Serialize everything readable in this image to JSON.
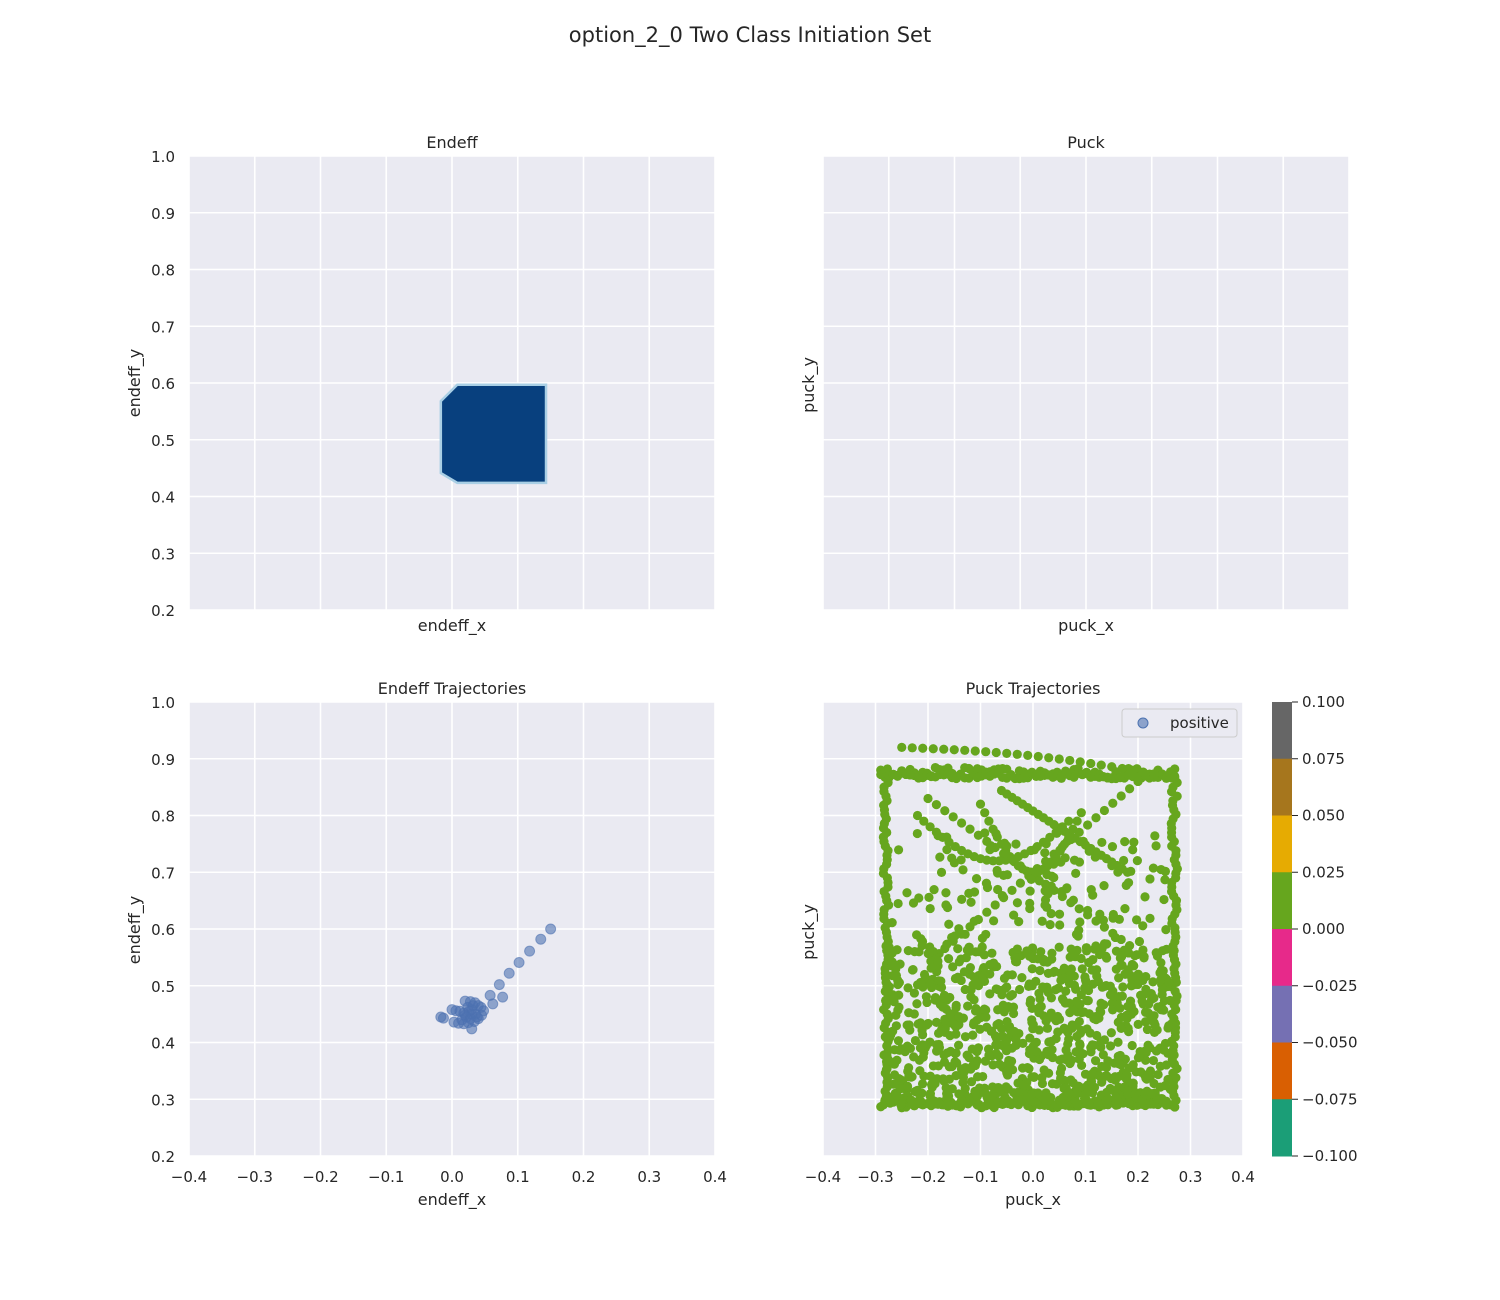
{
  "suptitle": "option_2_0 Two Class Initiation Set",
  "colors": {
    "axes_bg": "#eaeaf2",
    "grid": "#ffffff",
    "region": "#08407e",
    "region_edge": "#a9cfe5",
    "endeff_points": "#4c72b0",
    "puck_points": "#66a61e"
  },
  "chart_data": [
    {
      "type": "heatmap",
      "title": "Endeff",
      "xlabel": "endeff_x",
      "ylabel": "endeff_y",
      "xlim": [
        -0.4,
        0.4
      ],
      "ylim": [
        0.2,
        1.0
      ],
      "xticks_visible": false,
      "yticks": [
        "1.0",
        "0.9",
        "0.8",
        "0.7",
        "0.6",
        "0.5",
        "0.4",
        "0.3",
        "0.2"
      ],
      "grid": true,
      "region": {
        "x_range": [
          -0.017,
          0.143
        ],
        "y_range": [
          0.424,
          0.597
        ],
        "corner_cut": 0.025,
        "edge_color": "#a9cfe5"
      }
    },
    {
      "type": "heatmap",
      "title": "Puck",
      "xlabel": "puck_x",
      "ylabel": "puck_y",
      "xlim": [
        -0.4,
        0.4
      ],
      "ylim": [
        0.2,
        1.0
      ],
      "xticks_visible": false,
      "yticks_visible": false,
      "grid": true,
      "region": null
    },
    {
      "type": "scatter",
      "title": "Endeff Trajectories",
      "xlabel": "endeff_x",
      "ylabel": "endeff_y",
      "xlim": [
        -0.4,
        0.4
      ],
      "ylim": [
        0.2,
        1.0
      ],
      "xticks": [
        "−0.4",
        "−0.3",
        "−0.2",
        "−0.1",
        "0.0",
        "0.1",
        "0.2",
        "0.3",
        "0.4"
      ],
      "yticks": [
        "1.0",
        "0.9",
        "0.8",
        "0.7",
        "0.6",
        "0.5",
        "0.4",
        "0.3",
        "0.2"
      ],
      "grid": true,
      "points": [
        [
          0.15,
          0.6
        ],
        [
          0.135,
          0.582
        ],
        [
          0.118,
          0.561
        ],
        [
          0.102,
          0.541
        ],
        [
          0.087,
          0.522
        ],
        [
          0.072,
          0.502
        ],
        [
          0.058,
          0.483
        ],
        [
          0.077,
          0.48
        ],
        [
          0.062,
          0.468
        ],
        [
          0.048,
          0.456
        ],
        [
          0.04,
          0.465
        ],
        [
          0.035,
          0.47
        ],
        [
          0.028,
          0.472
        ],
        [
          0.02,
          0.473
        ],
        [
          0.024,
          0.462
        ],
        [
          0.03,
          0.458
        ],
        [
          0.036,
          0.45
        ],
        [
          0.018,
          0.452
        ],
        [
          0.012,
          0.455
        ],
        [
          0.006,
          0.456
        ],
        [
          0.0,
          0.458
        ],
        [
          0.022,
          0.445
        ],
        [
          0.028,
          0.442
        ],
        [
          0.04,
          0.442
        ],
        [
          0.034,
          0.437
        ],
        [
          0.025,
          0.435
        ],
        [
          0.018,
          0.433
        ],
        [
          0.01,
          0.434
        ],
        [
          0.003,
          0.436
        ],
        [
          0.03,
          0.424
        ],
        [
          -0.013,
          0.443
        ],
        [
          -0.017,
          0.445
        ],
        [
          0.044,
          0.462
        ],
        [
          0.03,
          0.45
        ],
        [
          0.026,
          0.455
        ],
        [
          0.02,
          0.448
        ],
        [
          0.038,
          0.445
        ],
        [
          0.015,
          0.44
        ],
        [
          0.032,
          0.465
        ],
        [
          0.045,
          0.448
        ]
      ]
    },
    {
      "type": "scatter",
      "title": "Puck Trajectories",
      "xlabel": "puck_x",
      "ylabel": "puck_y",
      "xlim": [
        -0.4,
        0.4
      ],
      "ylim": [
        0.2,
        1.0
      ],
      "xticks": [
        "−0.4",
        "−0.3",
        "−0.2",
        "−0.1",
        "0.0",
        "0.1",
        "0.2",
        "0.3",
        "0.4"
      ],
      "yticks_visible": false,
      "grid": true,
      "legend": {
        "label": "positive",
        "location": "top-right"
      },
      "point_color": "#66a61e",
      "trajectory_bounds": {
        "x": [
          -0.29,
          0.275
        ],
        "y": [
          0.27,
          0.935
        ]
      },
      "colorbar": {
        "range": [
          -0.1,
          0.1
        ],
        "ticks": [
          "0.100",
          "0.075",
          "0.050",
          "0.025",
          "0.000",
          "−0.025",
          "−0.050",
          "−0.075",
          "−0.100"
        ],
        "band_colors": [
          "#666666",
          "#a6761d",
          "#e6ab02",
          "#66a61e",
          "#e7298a",
          "#7570b3",
          "#d95f02",
          "#1b9e77"
        ]
      }
    }
  ]
}
